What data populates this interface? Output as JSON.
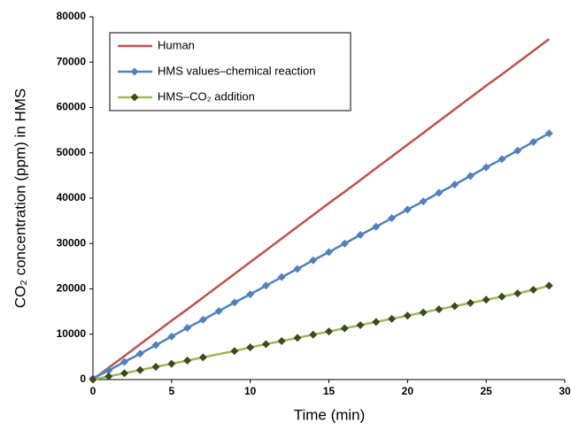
{
  "chart_data": {
    "type": "line",
    "xlabel": "Time (min)",
    "ylabel": "CO₂ concentration (ppm) in HMS",
    "xlim": [
      0,
      30
    ],
    "xticks": [
      0,
      5,
      10,
      15,
      20,
      25,
      30
    ],
    "ylim": [
      0,
      80000
    ],
    "yticks": [
      0,
      10000,
      20000,
      30000,
      40000,
      50000,
      60000,
      70000,
      80000
    ],
    "grid": false,
    "legend": "upper left",
    "series": [
      {
        "name": "Human",
        "color": "#c0504d",
        "marker": "none",
        "x": [
          0,
          1,
          2,
          3,
          4,
          5,
          6,
          7,
          8,
          9,
          10,
          11,
          12,
          13,
          14,
          15,
          16,
          17,
          18,
          19,
          20,
          21,
          22,
          23,
          24,
          25,
          26,
          27,
          28,
          29
        ],
        "values": [
          0,
          2600,
          5200,
          7800,
          10400,
          13000,
          15500,
          18100,
          20700,
          23300,
          25900,
          28500,
          31100,
          33700,
          36300,
          38900,
          41400,
          44000,
          46600,
          49200,
          51800,
          54400,
          57000,
          59600,
          62200,
          64800,
          67300,
          69900,
          72500,
          75100
        ]
      },
      {
        "name": "HMS values–chemical reaction",
        "color": "#4f81bd",
        "marker": "diamond",
        "marker_color": "#4f81bd",
        "x": [
          0,
          1,
          2,
          3,
          4,
          5,
          6,
          7,
          8,
          9,
          10,
          11,
          12,
          13,
          14,
          15,
          16,
          17,
          18,
          19,
          20,
          21,
          22,
          23,
          24,
          25,
          26,
          27,
          28,
          29
        ],
        "values": [
          300,
          2000,
          3900,
          5700,
          7600,
          9500,
          11400,
          13200,
          15100,
          17000,
          18800,
          20700,
          22600,
          24400,
          26300,
          28100,
          30000,
          31900,
          33700,
          35600,
          37500,
          39300,
          41200,
          43000,
          44900,
          46800,
          48600,
          50500,
          52400,
          54300
        ]
      },
      {
        "name": "HMS–CO₂ addition",
        "color": "#9bbb59",
        "marker": "diamond",
        "marker_color": "#3b4a1e",
        "x": [
          0,
          1,
          2,
          3,
          4,
          5,
          6,
          7,
          9,
          10,
          11,
          12,
          13,
          14,
          15,
          16,
          17,
          18,
          19,
          20,
          21,
          22,
          23,
          24,
          25,
          26,
          27,
          28,
          29
        ],
        "values": [
          0,
          700,
          1400,
          2100,
          2800,
          3500,
          4200,
          4900,
          6300,
          7100,
          7800,
          8500,
          9200,
          9900,
          10600,
          11300,
          12000,
          12700,
          13400,
          14100,
          14800,
          15500,
          16200,
          16900,
          17600,
          18300,
          19000,
          19800,
          20700
        ]
      }
    ]
  }
}
